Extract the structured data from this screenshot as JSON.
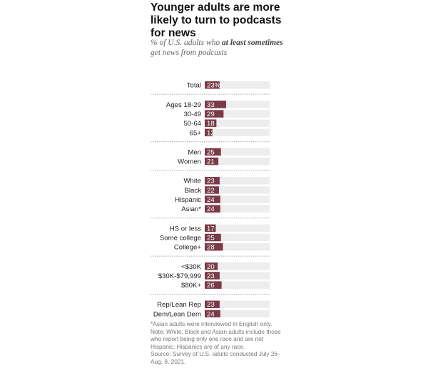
{
  "title": "Younger adults are more likely to turn to podcasts for news",
  "subtitle": {
    "part1": "% of U.S. adults who ",
    "bold": "at least sometimes",
    "part2": " get news from podcasts"
  },
  "notes": {
    "asian_note": "*Asian adults were interviewed in English only.",
    "note": "Note: White, Black and Asian adults include those who report being only one race and are not Hispanic; Hispanics are of any race.",
    "source": "Source: Survey of U.S. adults conducted July 26-Aug. 8, 2021."
  },
  "colors": {
    "bar": "#7a3b47",
    "track": "#ededed",
    "label_on_bar": "#ffffff",
    "divider": "#aaaaaa"
  },
  "chart_data": {
    "type": "bar",
    "orientation": "horizontal",
    "xlim": [
      0,
      100
    ],
    "groups": [
      {
        "items": [
          {
            "label": "Total",
            "value": 23,
            "value_label": "23%"
          }
        ]
      },
      {
        "items": [
          {
            "label": "Ages 18-29",
            "value": 33,
            "value_label": "33"
          },
          {
            "label": "30-49",
            "value": 29,
            "value_label": "29"
          },
          {
            "label": "50-64",
            "value": 18,
            "value_label": "18"
          },
          {
            "label": "65+",
            "value": 12,
            "value_label": "12"
          }
        ]
      },
      {
        "items": [
          {
            "label": "Men",
            "value": 25,
            "value_label": "25"
          },
          {
            "label": "Women",
            "value": 21,
            "value_label": "21"
          }
        ]
      },
      {
        "items": [
          {
            "label": "White",
            "value": 23,
            "value_label": "23"
          },
          {
            "label": "Black",
            "value": 22,
            "value_label": "22"
          },
          {
            "label": "Hispanic",
            "value": 24,
            "value_label": "24"
          },
          {
            "label": "Asian*",
            "value": 24,
            "value_label": "24"
          }
        ]
      },
      {
        "items": [
          {
            "label": "HS or less",
            "value": 17,
            "value_label": "17"
          },
          {
            "label": "Some college",
            "value": 25,
            "value_label": "25"
          },
          {
            "label": "College+",
            "value": 28,
            "value_label": "28"
          }
        ]
      },
      {
        "items": [
          {
            "label": "<$30K",
            "value": 20,
            "value_label": "20"
          },
          {
            "label": "$30K-$79,999",
            "value": 23,
            "value_label": "23"
          },
          {
            "label": "$80K+",
            "value": 26,
            "value_label": "26"
          }
        ]
      },
      {
        "items": [
          {
            "label": "Rep/Lean Rep",
            "value": 23,
            "value_label": "23"
          },
          {
            "label": "Dem/Lean Dem",
            "value": 24,
            "value_label": "24"
          }
        ]
      }
    ]
  }
}
